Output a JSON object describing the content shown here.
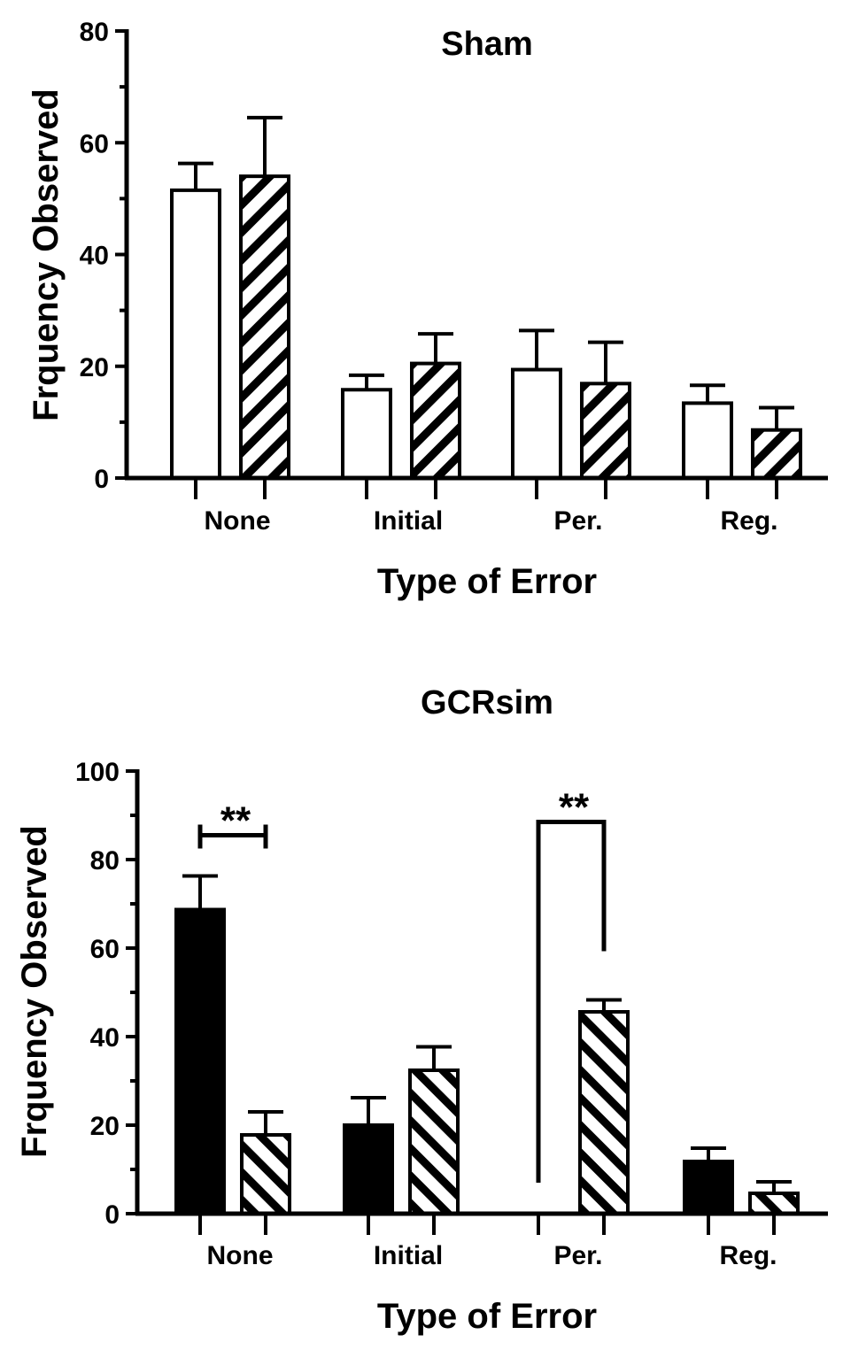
{
  "chart_data": [
    {
      "type": "bar",
      "title": "Sham",
      "xlabel": "Type of Error",
      "ylabel": "Frquency Observed",
      "categories": [
        "None",
        "Initial",
        "Per.",
        "Reg."
      ],
      "ylim": [
        0,
        80
      ],
      "yticks": [
        0,
        20,
        40,
        60,
        80
      ],
      "series": [
        {
          "fill": "#ffffff",
          "pattern": "none",
          "values": [
            51.5,
            15.8,
            19.4,
            13.4
          ],
          "errors": [
            4.8,
            2.6,
            7.0,
            3.2
          ]
        },
        {
          "fill": "#ffffff",
          "pattern": "hatch-45",
          "values": [
            54.0,
            20.5,
            16.9,
            8.6
          ],
          "errors": [
            10.5,
            5.3,
            7.4,
            4.0
          ]
        }
      ],
      "annotations": []
    },
    {
      "type": "bar",
      "title": "GCRsim",
      "xlabel": "Type of Error",
      "ylabel": "Frquency Observed",
      "categories": [
        "None",
        "Initial",
        "Per.",
        "Reg."
      ],
      "ylim": [
        0,
        100
      ],
      "yticks": [
        0,
        20,
        40,
        60,
        80,
        100
      ],
      "series": [
        {
          "fill": "#000000",
          "pattern": "none",
          "values": [
            68.7,
            20.0,
            0,
            11.8
          ],
          "errors": [
            7.6,
            6.2,
            0,
            3.0
          ]
        },
        {
          "fill": "#ffffff",
          "pattern": "hatch-135",
          "values": [
            17.8,
            32.4,
            45.6,
            4.6
          ],
          "errors": [
            5.2,
            5.3,
            2.7,
            2.6
          ]
        }
      ],
      "annotations": [
        {
          "label": "**",
          "category": "None",
          "type": "bracket",
          "y": 85.5
        },
        {
          "label": "**",
          "category": "Per.",
          "type": "bracket",
          "y": 88.5
        }
      ]
    }
  ]
}
